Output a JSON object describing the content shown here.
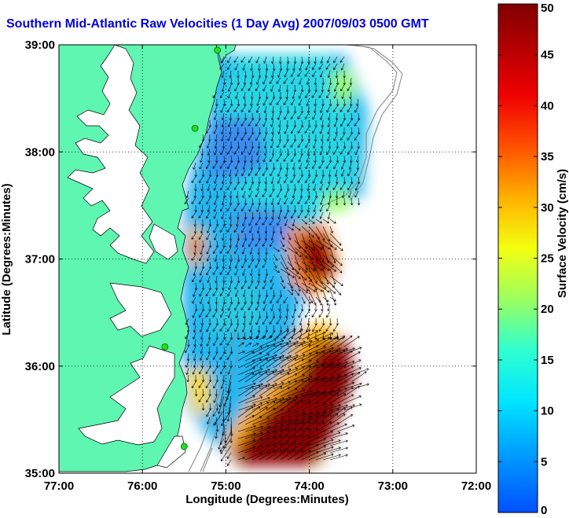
{
  "chart_data": {
    "type": "heatmap",
    "title": "Southern Mid-Atlantic Raw Velocities (1 Day Avg) 2007/09/03 0500 GMT",
    "xlabel": "Longitude (Degrees:Minutes)",
    "ylabel": "Latitude (Degrees:Minutes)",
    "xlim": [
      -77,
      -72
    ],
    "ylim": [
      35,
      39
    ],
    "x_ticks": [
      {
        "value": -77,
        "label": "77:00"
      },
      {
        "value": -76,
        "label": "76:00"
      },
      {
        "value": -75,
        "label": "75:00"
      },
      {
        "value": -74,
        "label": "74:00"
      },
      {
        "value": -73,
        "label": "73:00"
      },
      {
        "value": -72,
        "label": "72:00"
      }
    ],
    "y_ticks": [
      {
        "value": 35,
        "label": "35:00"
      },
      {
        "value": 36,
        "label": "36:00"
      },
      {
        "value": 37,
        "label": "37:00"
      },
      {
        "value": 38,
        "label": "38:00"
      },
      {
        "value": 39,
        "label": "39:00"
      }
    ],
    "grid": true,
    "colorbar": {
      "label": "Surface Velocity (cm/s)",
      "min": 0,
      "max": 50,
      "ticks": [
        0,
        5,
        10,
        15,
        20,
        25,
        30,
        35,
        40,
        45,
        50
      ],
      "colormap": "jet"
    },
    "land_color": "#5ef6b0",
    "coastline_color": "#000000",
    "isobath_color": "#8c8c8c",
    "arrow_color": "#000000",
    "stations": [
      {
        "lon": -75.1,
        "lat": 38.95
      },
      {
        "lon": -75.37,
        "lat": 38.22
      },
      {
        "lon": -75.73,
        "lat": 36.18
      },
      {
        "lon": -75.5,
        "lat": 35.25
      }
    ],
    "velocity_features": [
      {
        "lon": -74.3,
        "lat": 36.95,
        "speed": 50,
        "note": "high-speed core"
      },
      {
        "lon": -74.2,
        "lat": 35.6,
        "speed": 50
      },
      {
        "lon": -74.45,
        "lat": 38.55,
        "speed": 15
      },
      {
        "lon": -75.0,
        "lat": 37.3,
        "speed": 7
      }
    ]
  }
}
